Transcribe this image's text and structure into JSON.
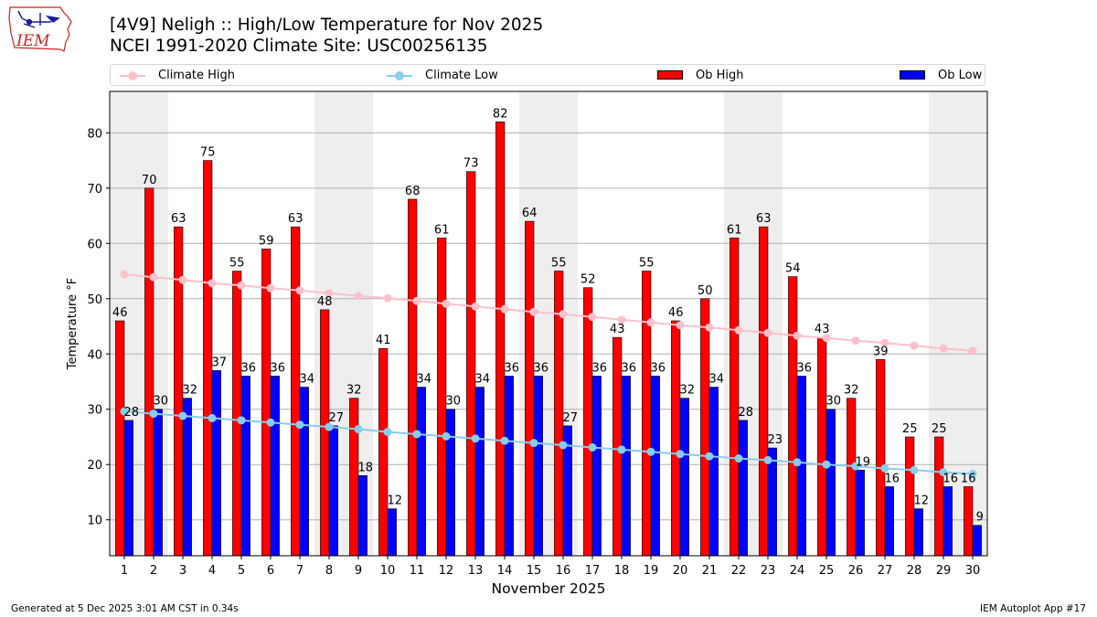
{
  "logo": {
    "text": "IEM",
    "color": "#cc2222"
  },
  "title_line1": "[4V9] Neligh :: High/Low Temperature for Nov 2025",
  "title_line2": "NCEI 1991-2020 Climate Site: USC00256135",
  "legend": {
    "climate_high": "Climate High",
    "climate_low": "Climate Low",
    "ob_high": "Ob High",
    "ob_low": "Ob Low"
  },
  "footer_left": "Generated at 5 Dec 2025 3:01 AM CST in 0.34s",
  "footer_right": "IEM Autoplot App #17",
  "chart_data": {
    "type": "bar",
    "xlabel": "November 2025",
    "ylabel": "Temperature °F",
    "ylim": [
      3.5,
      87.5
    ],
    "yticks": [
      10,
      20,
      30,
      40,
      50,
      60,
      70,
      80
    ],
    "grid": "horizontal",
    "legend_position": "top",
    "categories": [
      "1",
      "2",
      "3",
      "4",
      "5",
      "6",
      "7",
      "8",
      "9",
      "10",
      "11",
      "12",
      "13",
      "14",
      "15",
      "16",
      "17",
      "18",
      "19",
      "20",
      "21",
      "22",
      "23",
      "24",
      "25",
      "26",
      "27",
      "28",
      "29",
      "30"
    ],
    "weekend_days": [
      1,
      2,
      8,
      9,
      15,
      16,
      22,
      23,
      29,
      30
    ],
    "series": [
      {
        "name": "Ob High",
        "kind": "bar",
        "color": "#ff0000",
        "values": [
          46,
          70,
          63,
          75,
          55,
          59,
          63,
          48,
          32,
          41,
          68,
          61,
          73,
          82,
          64,
          55,
          52,
          43,
          55,
          46,
          50,
          61,
          63,
          54,
          43,
          32,
          39,
          25,
          25,
          16
        ]
      },
      {
        "name": "Ob Low",
        "kind": "bar",
        "color": "#0000ff",
        "values": [
          28,
          30,
          32,
          37,
          36,
          36,
          34,
          27,
          18,
          12,
          34,
          30,
          34,
          36,
          36,
          27,
          36,
          36,
          36,
          32,
          34,
          28,
          23,
          36,
          30,
          19,
          16,
          12,
          16,
          9
        ]
      },
      {
        "name": "Climate High",
        "kind": "line",
        "color": "#ffc0cb",
        "values": [
          54.4,
          53.9,
          53.4,
          52.8,
          52.4,
          51.9,
          51.5,
          51.0,
          50.5,
          50.1,
          49.6,
          49.1,
          48.6,
          48.1,
          47.6,
          47.2,
          46.7,
          46.2,
          45.7,
          45.2,
          44.8,
          44.3,
          43.8,
          43.3,
          42.9,
          42.4,
          42.0,
          41.5,
          41.0,
          40.6
        ]
      },
      {
        "name": "Climate Low",
        "kind": "line",
        "color": "#87ceeb",
        "values": [
          29.6,
          29.2,
          28.8,
          28.4,
          28.0,
          27.6,
          27.2,
          26.8,
          26.4,
          25.9,
          25.5,
          25.1,
          24.7,
          24.3,
          23.9,
          23.5,
          23.1,
          22.7,
          22.3,
          21.9,
          21.5,
          21.1,
          20.8,
          20.4,
          20.0,
          19.7,
          19.3,
          19.0,
          18.6,
          18.3
        ]
      }
    ]
  }
}
